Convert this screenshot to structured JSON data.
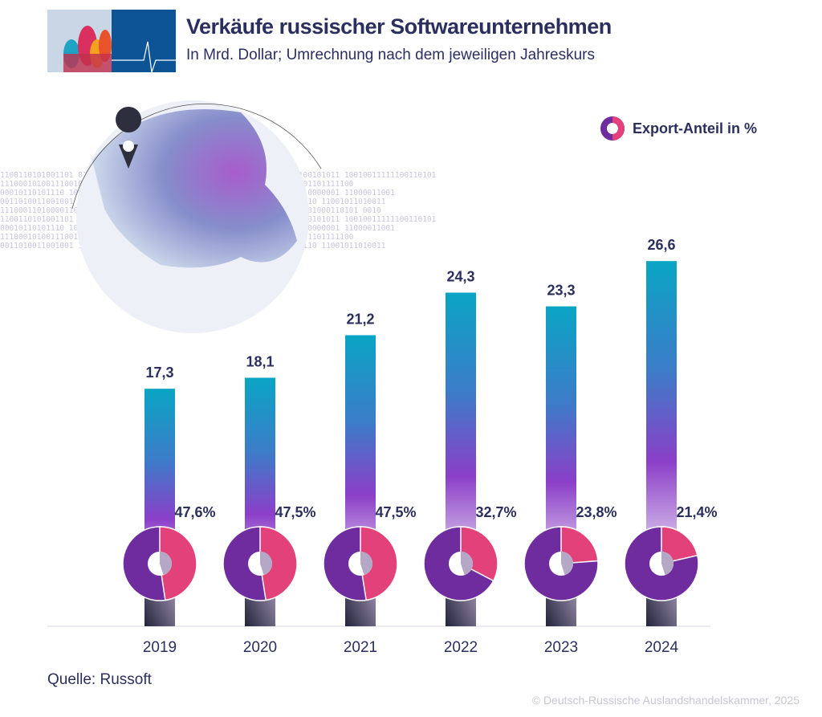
{
  "header": {
    "title": "Verkäufe russischer Softwareunternehmen",
    "subtitle": "In Mrd. Dollar; Umrechnung nach dem jeweiligen Jahreskurs"
  },
  "legend": {
    "label": "Export-Anteil in %"
  },
  "background_binary": [
    "1100110101001101 0110001111001010 11001001011110010101001 0110011100101011 10010011111100110101",
    "1110001010011100100011010100001110101 1110010101101001101 0001110101101111100",
    "00010110101110 1001011000101110 010110111110100000001011 01001101010000001 11000011001",
    "0011010011001001 1010110100101101 00111011110100 01110101 01011100110 11001011010011",
    "111000110100001100101010 0111001001 000101101110100010100 111001 0101000110101 0010"
  ],
  "colors": {
    "export": "#e3417a",
    "domestic": "#6e2c9e",
    "bar_top": "#0aa5c4",
    "bar_mid": "#8b3fc8",
    "text": "#2b2f5e"
  },
  "chart_data": {
    "type": "bar",
    "categories": [
      "2019",
      "2020",
      "2021",
      "2022",
      "2023",
      "2024"
    ],
    "values": [
      17.3,
      18.1,
      21.2,
      24.3,
      23.3,
      26.6
    ],
    "value_labels": [
      "17,3",
      "18,1",
      "21,2",
      "24,3",
      "23,3",
      "26,6"
    ],
    "export_share": [
      47.6,
      47.5,
      47.5,
      32.7,
      23.8,
      21.4
    ],
    "export_labels": [
      "47,6%",
      "47,5%",
      "47,5%",
      "32,7%",
      "23,8%",
      "21,4%"
    ],
    "ylim": [
      0,
      30
    ],
    "grid": false,
    "legend_position": "top-right"
  },
  "footer": {
    "source": "Quelle: Russoft",
    "copyright": "© Deutsch-Russische Auslandshandelskammer, 2025"
  }
}
